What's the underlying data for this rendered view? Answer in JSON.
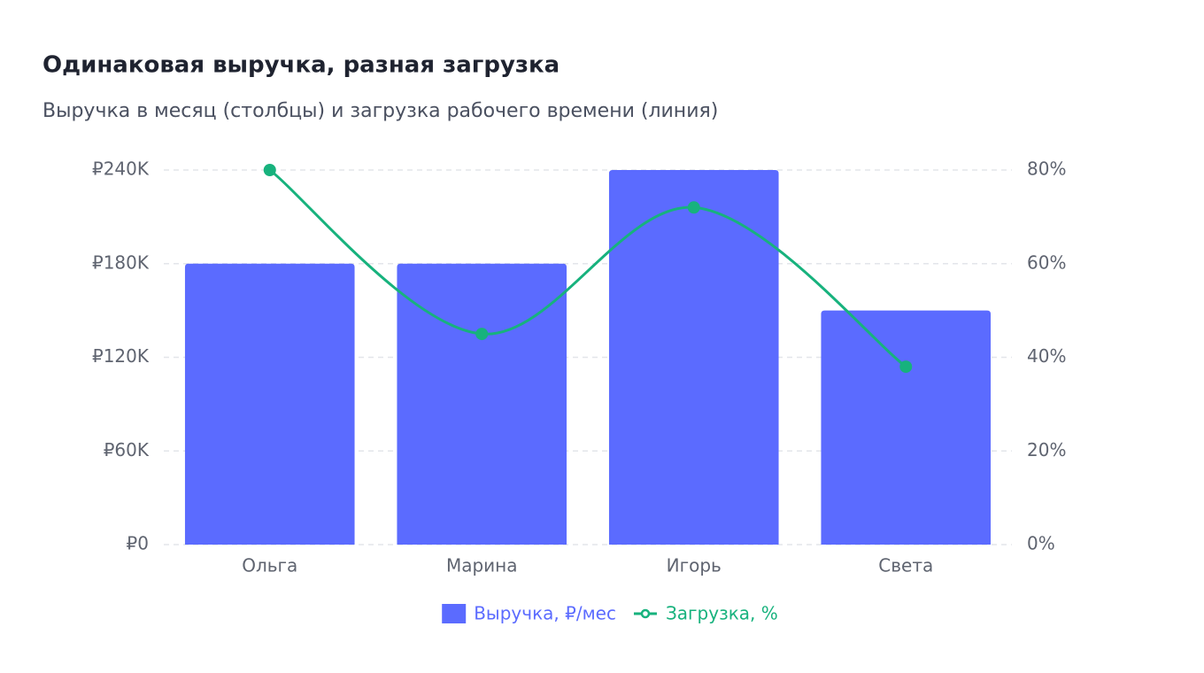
{
  "chart_data": {
    "type": "bar",
    "title": "Одинаковая выручка, разная загрузка",
    "subtitle": "Выручка в месяц (столбцы) и загрузка рабочего времени (линия)",
    "categories": [
      "Ольга",
      "Марина",
      "Игорь",
      "Света"
    ],
    "series": [
      {
        "name": "Выручка, ₽/мес",
        "type": "bar",
        "color": "#5b6bff",
        "values": [
          180000,
          180000,
          240000,
          150000
        ]
      },
      {
        "name": "Загрузка, %",
        "type": "line",
        "axis": "y2",
        "color": "#17b27d",
        "values": [
          80,
          45,
          72,
          38
        ]
      }
    ],
    "ylim": [
      0,
      240000
    ],
    "yticks": [
      {
        "value": 0,
        "label": "₽0"
      },
      {
        "value": 60000,
        "label": "₽60K"
      },
      {
        "value": 120000,
        "label": "₽120K"
      },
      {
        "value": 180000,
        "label": "₽180K"
      },
      {
        "value": 240000,
        "label": "₽240K"
      }
    ],
    "y2lim": [
      0,
      80
    ],
    "y2ticks": [
      {
        "value": 0,
        "label": "0%"
      },
      {
        "value": 20,
        "label": "20%"
      },
      {
        "value": 40,
        "label": "40%"
      },
      {
        "value": 60,
        "label": "60%"
      },
      {
        "value": 80,
        "label": "80%"
      }
    ],
    "grid": true,
    "legend": "bottom"
  }
}
